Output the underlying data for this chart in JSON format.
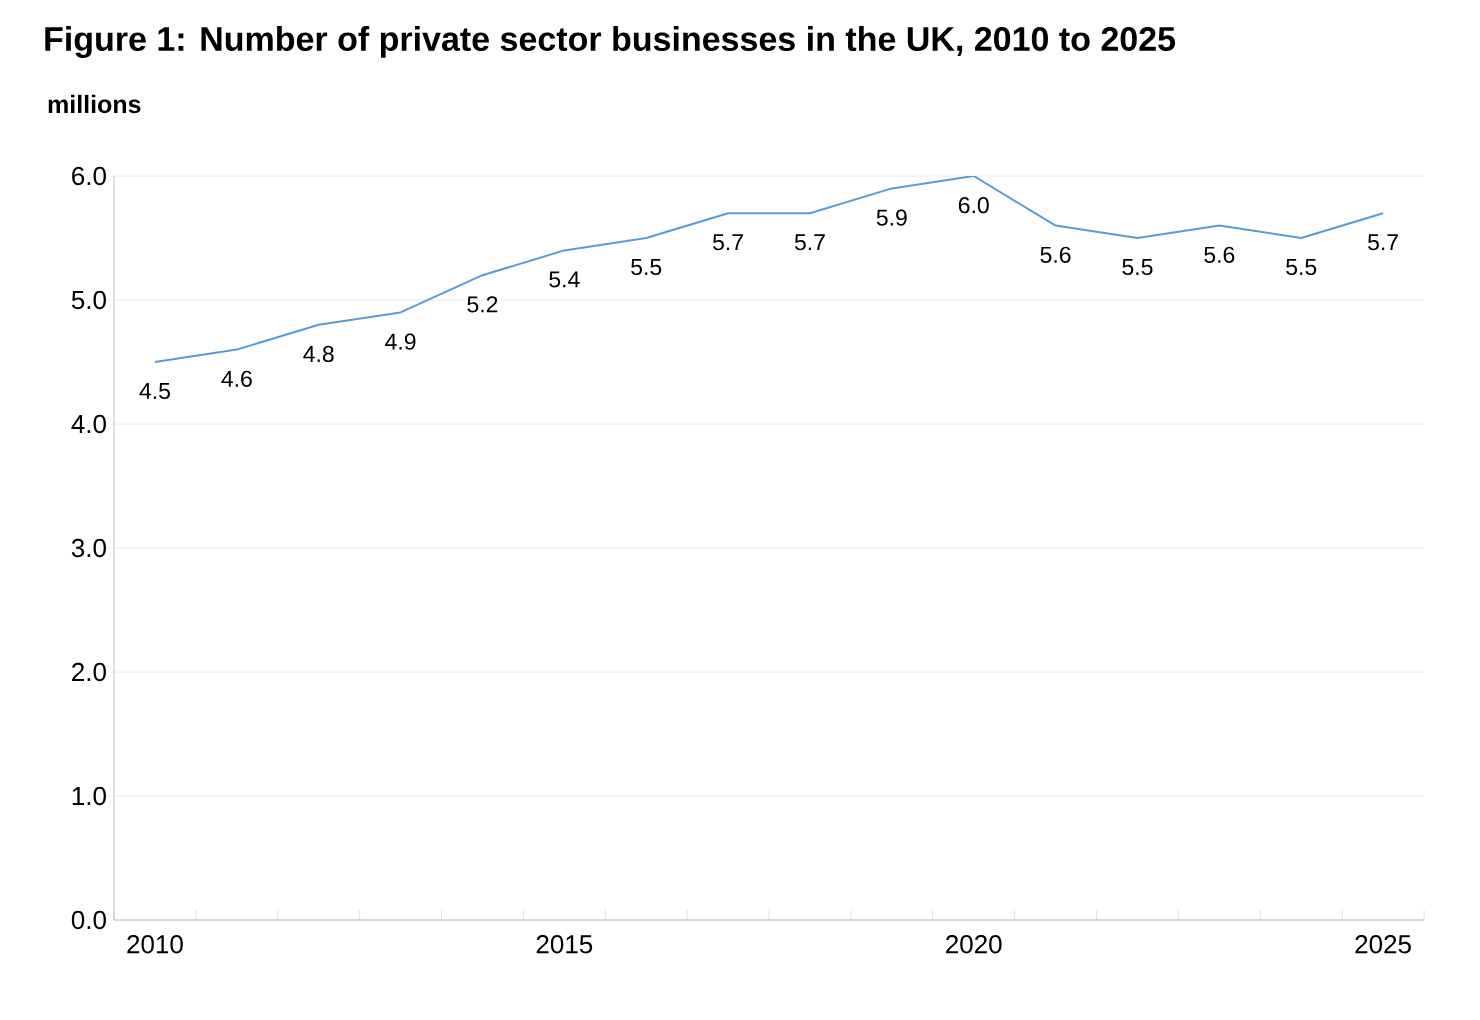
{
  "chart_data": {
    "type": "line",
    "title": "Figure 1: Number of private sector businesses in the UK, 2010 to 2025",
    "ylabel": "millions",
    "categories": [
      "2010",
      null,
      null,
      null,
      null,
      "2015",
      null,
      null,
      null,
      null,
      "2020",
      null,
      null,
      null,
      null,
      "2025"
    ],
    "series": [
      {
        "color": "#5b9bd5",
        "values": [
          4.5,
          4.6,
          4.8,
          4.9,
          5.2,
          5.4,
          5.5,
          5.7,
          5.7,
          5.9,
          6.0,
          5.6,
          5.5,
          5.6,
          5.5,
          5.7
        ],
        "value_labels": [
          "4.5",
          "4.6",
          "4.8",
          "4.9",
          "5.2",
          "5.4",
          "5.5",
          "5.7",
          "5.7",
          "5.9",
          "6.0",
          "5.6",
          "5.5",
          "5.6",
          "5.5",
          "5.7"
        ]
      }
    ],
    "ylim": [
      0,
      6
    ],
    "yticks": [
      {
        "value": 0,
        "label": "0.0"
      },
      {
        "value": 1,
        "label": "1.0"
      },
      {
        "value": 2,
        "label": "2.0"
      },
      {
        "value": 3,
        "label": "3.0"
      },
      {
        "value": 4,
        "label": "4.0"
      },
      {
        "value": 5,
        "label": "5.0"
      },
      {
        "value": 6,
        "label": "6.0"
      }
    ],
    "grid": "y",
    "marker": "none",
    "line_style": "solid"
  }
}
